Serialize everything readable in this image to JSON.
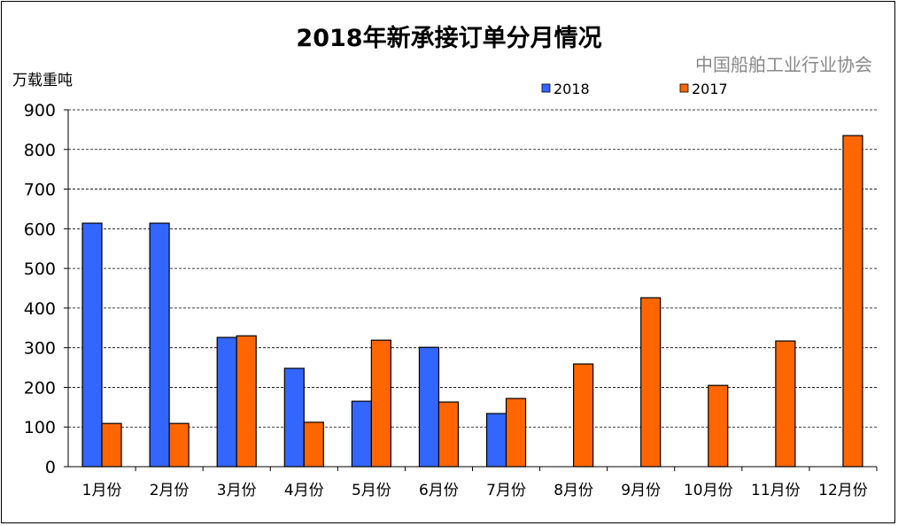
{
  "chart_data": {
    "type": "bar",
    "title": "2018年新承接订单分月情况",
    "ylabel": "万载重吨",
    "xlabel": "",
    "ylim": [
      0,
      900
    ],
    "yticks": [
      0,
      100,
      200,
      300,
      400,
      500,
      600,
      700,
      800,
      900
    ],
    "grid": true,
    "legend_position": "top-right",
    "categories": [
      "1月份",
      "2月份",
      "3月份",
      "4月份",
      "5月份",
      "6月份",
      "7月份",
      "8月份",
      "9月份",
      "10月份",
      "11月份",
      "12月份"
    ],
    "series": [
      {
        "name": "2018",
        "color": "#3366FF",
        "values": [
          614,
          614,
          326,
          248,
          165,
          301,
          134,
          null,
          null,
          null,
          null,
          null
        ]
      },
      {
        "name": "2017",
        "color": "#FF6600",
        "values": [
          109,
          109,
          330,
          112,
          319,
          163,
          172,
          259,
          426,
          205,
          317,
          835
        ]
      }
    ]
  },
  "watermark": "中国船舶工业行业协会"
}
